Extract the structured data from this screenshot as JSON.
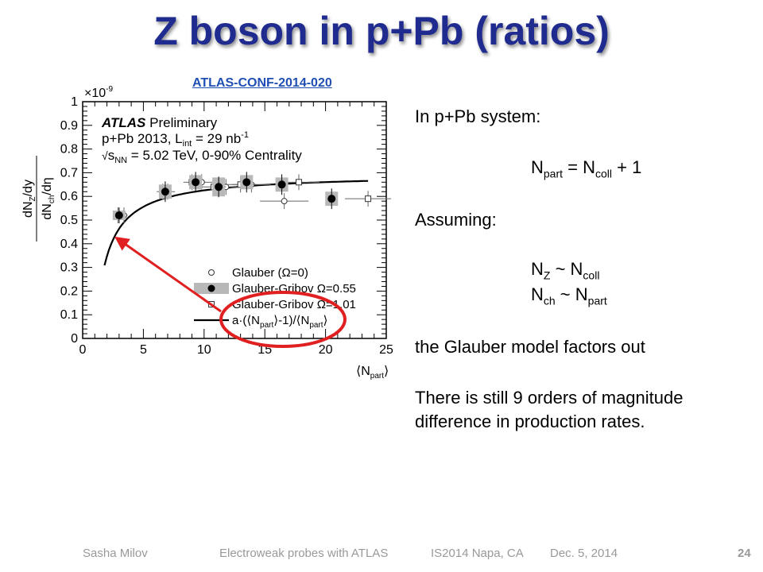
{
  "slide": {
    "title": "Z boson in p+Pb (ratios)",
    "reference": "ATLAS-CONF-2014-020"
  },
  "text": {
    "line1": "In p+Pb system:",
    "eq1": {
      "a": "N",
      "a_sub": "part",
      "mid": " = N",
      "b_sub": "coll",
      "end": " + 1"
    },
    "line_assuming": "Assuming:",
    "eq2": {
      "a": "N",
      "a_sub": "Z",
      "mid": " ~ N",
      "b_sub": "coll"
    },
    "eq3": {
      "a": "N",
      "a_sub": "ch",
      "mid": " ~ N",
      "b_sub": "part"
    },
    "line_glauber": "the Glauber model factors out",
    "line_still1": "There is still 9 orders of magnitude",
    "line_still2": "difference in production rates."
  },
  "footer": {
    "author": "Sasha Milov",
    "talk": "Electroweak probes with ATLAS",
    "conf": "IS2014 Napa, CA",
    "date": "Dec. 5, 2014",
    "page": "24"
  },
  "chart_data": {
    "type": "scatter",
    "ylabel": "dN_Z/dy / dN_ch/dη",
    "xlabel": "⟨N_part⟩",
    "y_multiplier": "×10^-9",
    "xlim": [
      0,
      25
    ],
    "ylim": [
      0,
      1
    ],
    "x_ticks": [
      "0",
      "5",
      "10",
      "15",
      "20",
      "25"
    ],
    "y_ticks": [
      "0",
      "0.1",
      "0.2",
      "0.3",
      "0.4",
      "0.5",
      "0.6",
      "0.7",
      "0.8",
      "0.9",
      "1"
    ],
    "labels": {
      "atlas": "ATLAS",
      "preliminary": "Preliminary",
      "dataset": "p+Pb 2013, L",
      "dataset_sub": "int",
      "dataset_lumi": " = 29 nb",
      "dataset_sup": "-1",
      "energy_s": "s",
      "energy_sub": "NN",
      "energy_rest": " = 5.02 TeV, 0-90% Centrality"
    },
    "series": [
      {
        "name": "Glauber (Ω=0)",
        "marker": "open-circle",
        "x": [
          3.4,
          7.0,
          9.8,
          11.8,
          13.9,
          16.6
        ],
        "y": [
          0.52,
          0.62,
          0.66,
          0.64,
          0.65,
          0.58
        ],
        "xerr": [
          0.3,
          0.6,
          0.9,
          1.2,
          1.6,
          2.0
        ]
      },
      {
        "name": "Glauber-Gribov Ω=0.55",
        "marker": "filled-circle",
        "x": [
          3.0,
          6.8,
          9.3,
          11.2,
          13.5,
          16.4,
          20.5
        ],
        "y": [
          0.52,
          0.62,
          0.66,
          0.64,
          0.66,
          0.65,
          0.59
        ],
        "yerr": [
          0.02,
          0.03,
          0.03,
          0.03,
          0.03,
          0.03,
          0.03
        ],
        "syst": [
          0.02,
          0.03,
          0.03,
          0.04,
          0.03,
          0.03,
          0.03
        ]
      },
      {
        "name": "Glauber-Gribov Ω=1.01",
        "marker": "open-square",
        "x": [
          2.9,
          6.6,
          9.0,
          10.8,
          13.0,
          17.8,
          23.5
        ],
        "y": [
          0.52,
          0.62,
          0.66,
          0.64,
          0.65,
          0.66,
          0.59
        ],
        "xerr": [
          0.2,
          0.5,
          0.7,
          1.0,
          1.3,
          1.7,
          1.9
        ]
      },
      {
        "name": "a·(⟨N_part⟩-1)/⟨N_part⟩",
        "type": "line",
        "a": 0.695,
        "x_range": [
          1.8,
          23.5
        ]
      }
    ],
    "legend": {
      "position": "bottom-right",
      "entries": [
        {
          "label": "Glauber (Ω=0)"
        },
        {
          "label": "Glauber-Gribov Ω=0.55"
        },
        {
          "label": "Glauber-Gribov Ω=1.01"
        },
        {
          "label_a": "a·(⟨N",
          "label_sub": "part",
          "label_b": "⟩-1)/⟨N",
          "label_sub2": "part",
          "label_c": "⟩"
        }
      ]
    },
    "annotation_color": "#e02020"
  }
}
